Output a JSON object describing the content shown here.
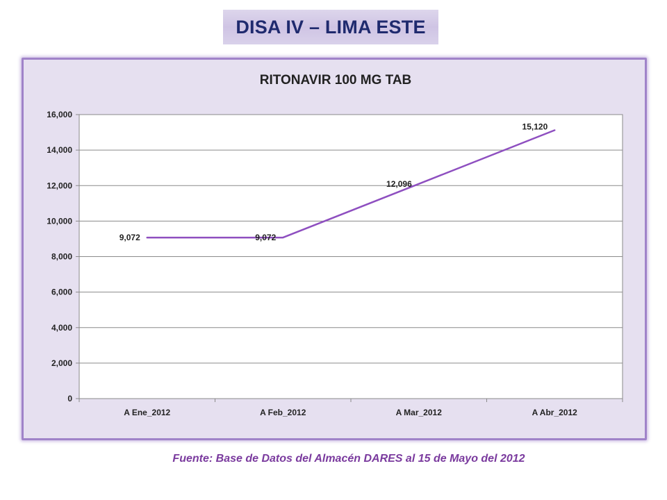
{
  "header": {
    "title": "DISA IV – LIMA ESTE"
  },
  "chart_data": {
    "type": "line",
    "title": "RITONAVIR 100 MG TAB",
    "categories": [
      "A Ene_2012",
      "A Feb_2012",
      "A Mar_2012",
      "A Abr_2012"
    ],
    "values": [
      9072,
      9072,
      12096,
      15120
    ],
    "data_labels": [
      "9,072",
      "9,072",
      "12,096",
      "15,120"
    ],
    "y_ticks": [
      "0",
      "2,000",
      "4,000",
      "6,000",
      "8,000",
      "10,000",
      "12,000",
      "14,000",
      "16,000"
    ],
    "ylim": [
      0,
      16000
    ],
    "y_step": 2000,
    "grid": true,
    "legend": "none",
    "line_color": "#8e4fc0",
    "xlabel": "",
    "ylabel": ""
  },
  "footer": {
    "source": "Fuente: Base de Datos del Almacén DARES al 15 de Mayo del 2012"
  }
}
